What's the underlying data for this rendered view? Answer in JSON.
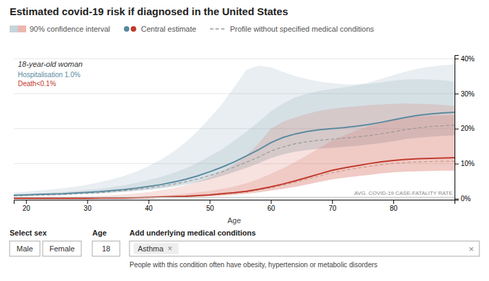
{
  "chart_data": {
    "type": "line",
    "title": "Estimated covid-19 risk if diagnosed in the United States",
    "subtitle": "18-year-old woman",
    "xlabel": "Age",
    "legend": "top",
    "legend_labels": [
      "90% confidence interval",
      "Central estimate",
      "Profile without specified medical conditions"
    ],
    "grid": true,
    "x": [
      18,
      20,
      22,
      24,
      26,
      28,
      30,
      32,
      34,
      36,
      38,
      40,
      42,
      44,
      46,
      48,
      50,
      52,
      54,
      56,
      58,
      60,
      62,
      64,
      66,
      68,
      70,
      72,
      74,
      76,
      78,
      80,
      82,
      84,
      86,
      88,
      90
    ],
    "xlim": [
      18,
      90
    ],
    "xticks": [
      20,
      30,
      40,
      50,
      60,
      70,
      80
    ],
    "ylim": [
      -0.003,
      0.41
    ],
    "yticks": [
      {
        "value": 0,
        "label": "0%"
      },
      {
        "value": 0.1,
        "label": "10%"
      },
      {
        "value": 0.2,
        "label": "20%"
      },
      {
        "value": 0.3,
        "label": "30%"
      },
      {
        "value": 0.4,
        "label": "40%"
      }
    ],
    "reference_lines": [
      {
        "value": 0.004,
        "label": "AVG. COVID-19 CASE-FATALITY RATE"
      }
    ],
    "series": [
      {
        "type": "area",
        "color": "#8aabb8",
        "lower": [
          0.008,
          0.009,
          0.009,
          0.01,
          0.011,
          0.012,
          0.014,
          0.015,
          0.017,
          0.019,
          0.022,
          0.025,
          0.029,
          0.034,
          0.04,
          0.047,
          0.055,
          0.065,
          0.076,
          0.088,
          0.101,
          0.116,
          0.127,
          0.134,
          0.139,
          0.143,
          0.145,
          0.148,
          0.151,
          0.155,
          0.159,
          0.164,
          0.17,
          0.174,
          0.177,
          0.179,
          0.181
        ],
        "values": [
          0.018,
          0.02,
          0.023,
          0.026,
          0.03,
          0.034,
          0.04,
          0.047,
          0.055,
          0.065,
          0.077,
          0.093,
          0.111,
          0.133,
          0.16,
          0.192,
          0.23,
          0.27,
          0.318,
          0.368,
          0.38,
          0.375,
          0.362,
          0.35,
          0.341,
          0.334,
          0.33,
          0.327,
          0.326,
          0.328,
          0.332,
          0.337,
          0.34,
          0.341,
          0.34,
          0.338,
          0.335
        ]
      },
      {
        "type": "area",
        "color": "#8aabb8",
        "lower": [
          0.008,
          0.009,
          0.009,
          0.01,
          0.011,
          0.012,
          0.014,
          0.015,
          0.017,
          0.019,
          0.022,
          0.025,
          0.029,
          0.034,
          0.04,
          0.047,
          0.055,
          0.065,
          0.076,
          0.088,
          0.101,
          0.116,
          0.127,
          0.134,
          0.139,
          0.143,
          0.145,
          0.148,
          0.151,
          0.155,
          0.159,
          0.164,
          0.17,
          0.174,
          0.177,
          0.179,
          0.181
        ],
        "values": [
          0.013,
          0.014,
          0.016,
          0.017,
          0.019,
          0.022,
          0.025,
          0.028,
          0.033,
          0.038,
          0.045,
          0.053,
          0.062,
          0.073,
          0.086,
          0.102,
          0.121,
          0.141,
          0.165,
          0.191,
          0.219,
          0.249,
          0.272,
          0.289,
          0.3,
          0.308,
          0.313,
          0.318,
          0.324,
          0.332,
          0.342,
          0.353,
          0.363,
          0.371,
          0.377,
          0.381,
          0.383
        ]
      },
      {
        "type": "area",
        "color": "#d97060",
        "lower": [
          0.0005,
          0.0006,
          0.0006,
          0.0007,
          0.0007,
          0.0008,
          0.0009,
          0.001,
          0.001,
          0.0013,
          0.0016,
          0.002,
          0.003,
          0.003,
          0.004,
          0.006,
          0.007,
          0.009,
          0.011,
          0.014,
          0.018,
          0.023,
          0.028,
          0.034,
          0.041,
          0.048,
          0.055,
          0.06,
          0.064,
          0.068,
          0.072,
          0.075,
          0.077,
          0.078,
          0.079,
          0.08,
          0.08
        ],
        "values": [
          0.003,
          0.003,
          0.004,
          0.004,
          0.005,
          0.006,
          0.007,
          0.008,
          0.01,
          0.012,
          0.015,
          0.019,
          0.024,
          0.03,
          0.038,
          0.048,
          0.061,
          0.077,
          0.098,
          0.124,
          0.158,
          0.2,
          0.22,
          0.232,
          0.243,
          0.251,
          0.257,
          0.261,
          0.264,
          0.267,
          0.269,
          0.271,
          0.272,
          0.271,
          0.27,
          0.268,
          0.265
        ]
      },
      {
        "type": "area",
        "color": "#d97060",
        "lower": [
          0.0005,
          0.0006,
          0.0006,
          0.0007,
          0.0007,
          0.0008,
          0.0009,
          0.001,
          0.001,
          0.0013,
          0.0016,
          0.002,
          0.003,
          0.003,
          0.004,
          0.006,
          0.007,
          0.009,
          0.011,
          0.014,
          0.018,
          0.023,
          0.028,
          0.034,
          0.041,
          0.048,
          0.055,
          0.06,
          0.064,
          0.068,
          0.072,
          0.075,
          0.077,
          0.078,
          0.079,
          0.08,
          0.08
        ],
        "values": [
          0.0015,
          0.0018,
          0.002,
          0.002,
          0.002,
          0.003,
          0.003,
          0.003,
          0.004,
          0.005,
          0.006,
          0.007,
          0.009,
          0.011,
          0.014,
          0.018,
          0.022,
          0.028,
          0.035,
          0.044,
          0.056,
          0.071,
          0.087,
          0.105,
          0.125,
          0.146,
          0.166,
          0.181,
          0.195,
          0.207,
          0.217,
          0.225,
          0.231,
          0.235,
          0.237,
          0.238,
          0.239
        ]
      },
      {
        "type": "line",
        "line_style": "dashed",
        "color": "#999999",
        "values": [
          0.008,
          0.009,
          0.01,
          0.011,
          0.012,
          0.014,
          0.015,
          0.017,
          0.02,
          0.023,
          0.026,
          0.03,
          0.035,
          0.041,
          0.048,
          0.056,
          0.066,
          0.077,
          0.09,
          0.104,
          0.119,
          0.136,
          0.148,
          0.157,
          0.163,
          0.167,
          0.17,
          0.173,
          0.176,
          0.18,
          0.185,
          0.191,
          0.197,
          0.202,
          0.206,
          0.208,
          0.21
        ]
      },
      {
        "type": "line",
        "line_style": "dashed",
        "color": "#cc9988",
        "values": [
          0.0007,
          0.0008,
          0.0009,
          0.001,
          0.001,
          0.001,
          0.001,
          0.0015,
          0.002,
          0.002,
          0.003,
          0.003,
          0.004,
          0.005,
          0.006,
          0.008,
          0.01,
          0.012,
          0.016,
          0.019,
          0.025,
          0.031,
          0.039,
          0.047,
          0.056,
          0.065,
          0.074,
          0.081,
          0.087,
          0.092,
          0.097,
          0.101,
          0.103,
          0.105,
          0.106,
          0.107,
          0.107
        ]
      },
      {
        "name": "Hospitalisation 1.0%",
        "type": "line",
        "line_style": "solid",
        "color": "#5a8a9f",
        "values": [
          0.01,
          0.011,
          0.012,
          0.013,
          0.014,
          0.016,
          0.018,
          0.02,
          0.023,
          0.026,
          0.03,
          0.035,
          0.04,
          0.047,
          0.055,
          0.065,
          0.077,
          0.09,
          0.105,
          0.122,
          0.14,
          0.16,
          0.175,
          0.185,
          0.192,
          0.197,
          0.2,
          0.203,
          0.207,
          0.212,
          0.218,
          0.225,
          0.232,
          0.238,
          0.242,
          0.245,
          0.247
        ]
      },
      {
        "name": "Death<0.1%",
        "type": "line",
        "line_style": "solid",
        "color": "#c0392b",
        "values": [
          0.001,
          0.001,
          0.001,
          0.001,
          0.001,
          0.001,
          0.001,
          0.002,
          0.002,
          0.002,
          0.003,
          0.004,
          0.005,
          0.006,
          0.007,
          0.009,
          0.011,
          0.014,
          0.017,
          0.021,
          0.027,
          0.034,
          0.042,
          0.051,
          0.061,
          0.071,
          0.081,
          0.088,
          0.094,
          0.1,
          0.105,
          0.109,
          0.112,
          0.114,
          0.115,
          0.116,
          0.117
        ]
      }
    ]
  },
  "controls": {
    "sex_label": "Select sex",
    "sex_options": [
      "Male",
      "Female"
    ],
    "age_label": "Age",
    "age_value": "18",
    "condition_label": "Add underlying medical conditions",
    "condition_note": "People with this condition often have obesity, hypertension or metabolic disorders",
    "condition_tags": [
      "Asthma"
    ],
    "tag_remove": "×",
    "clear": "×"
  }
}
